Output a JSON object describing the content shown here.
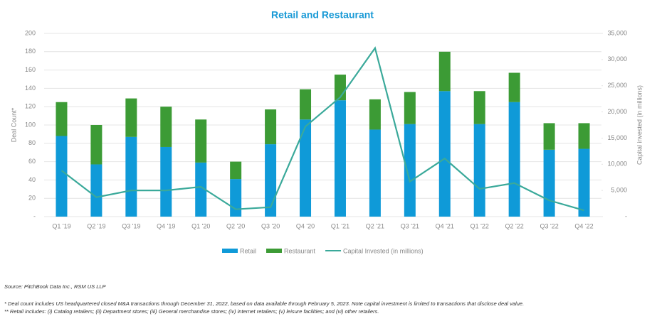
{
  "chart_data": {
    "type": "bar-line",
    "title": "Retail and Restaurant",
    "categories": [
      "Q1 '19",
      "Q2 '19",
      "Q3 '19",
      "Q4 '19",
      "Q1 '20",
      "Q2 '20",
      "Q3 '20",
      "Q4 '20",
      "Q1 '21",
      "Q2 '21",
      "Q3 '21",
      "Q4 '21",
      "Q1 '22",
      "Q2 '22",
      "Q3 '22",
      "Q4 '22"
    ],
    "y_label": "Deal Count*",
    "y2_label": "Capital invested (in millions)",
    "series": [
      {
        "name": "Retail",
        "type": "bar",
        "color": "#0f9ad8",
        "values": [
          88,
          57,
          87,
          76,
          59,
          41,
          79,
          106,
          127,
          95,
          101,
          137,
          101,
          125,
          73,
          74
        ]
      },
      {
        "name": "Restaurant",
        "type": "bar",
        "color": "#3c9b35",
        "values": [
          37,
          43,
          42,
          44,
          47,
          19,
          38,
          33,
          28,
          33,
          35,
          43,
          36,
          32,
          29,
          28
        ]
      },
      {
        "name": "Capital Invested (in millions)",
        "type": "line",
        "axis": "y2",
        "color": "#3aa99a",
        "values": [
          8800,
          3700,
          5000,
          5000,
          5700,
          1400,
          1800,
          17200,
          22800,
          32200,
          6700,
          11100,
          5300,
          6400,
          3100,
          1200
        ]
      }
    ],
    "ylim": [
      0,
      200
    ],
    "yticks": [
      {
        "value": 0,
        "label": "-"
      },
      20,
      40,
      60,
      80,
      100,
      120,
      140,
      160,
      180,
      200
    ],
    "y2lim": [
      0,
      35000
    ],
    "y2ticks": [
      {
        "value": 0,
        "label": "-"
      },
      {
        "value": 5000,
        "label": "5,000"
      },
      {
        "value": 10000,
        "label": "10,000"
      },
      {
        "value": 15000,
        "label": "15,000"
      },
      {
        "value": 20000,
        "label": "20,000"
      },
      {
        "value": 25000,
        "label": "25,000"
      },
      {
        "value": 30000,
        "label": "30,000"
      },
      {
        "value": 35000,
        "label": "35,000"
      }
    ],
    "grid": true,
    "source": "Source: PitchBook Data Inc., RSM US LLP",
    "footnotes": [
      "* Deal count includes US headquartered closed M&A transactions through December 31, 2022, based on data available through February 5, 2023. Note capital investment is limited to transactions that disclose deal value.",
      "** Retail includes: (i) Catalog retailers; (ii) Department stores; (iii) General merchandise stores; (iv) internet retailers; (v) leisure facilities; and (vi) other retailers."
    ]
  }
}
